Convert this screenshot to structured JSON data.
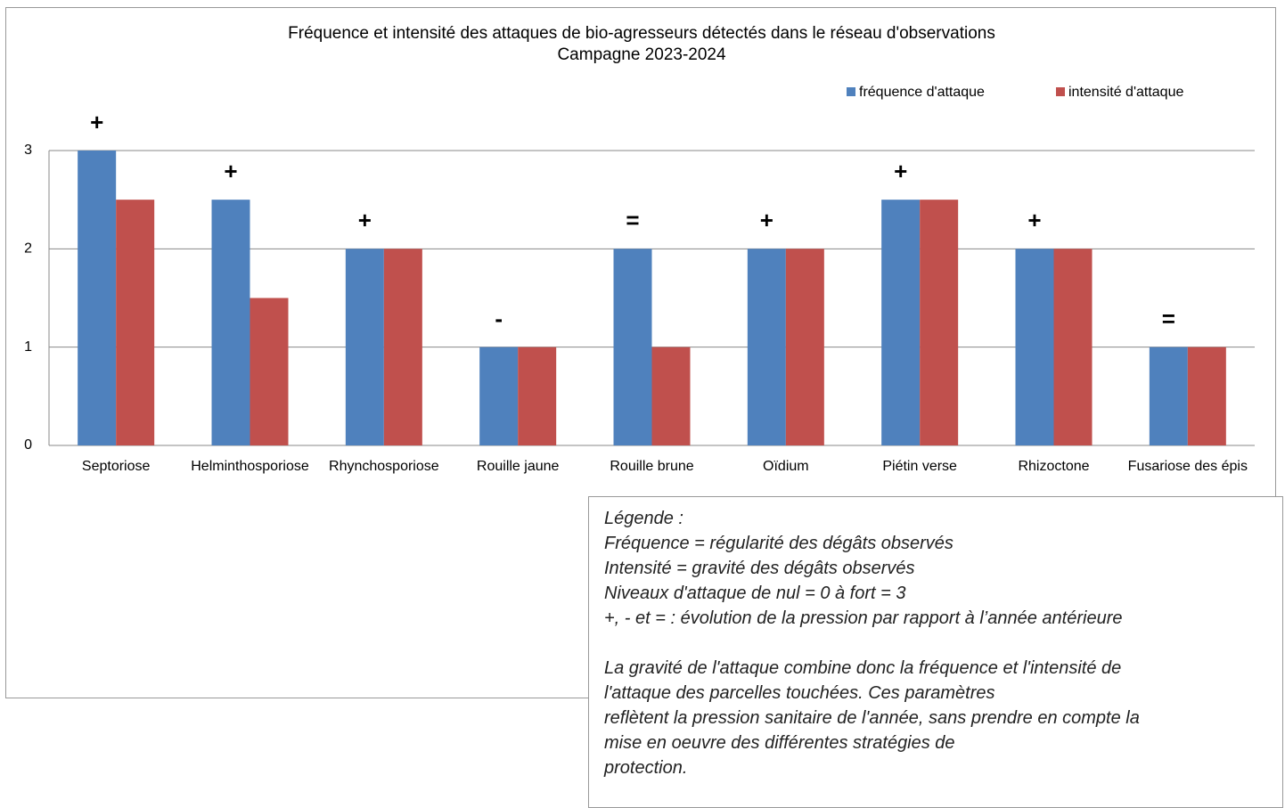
{
  "chart_data": {
    "type": "bar",
    "title": "Fréquence et intensité des attaques de bio-agresseurs détectés dans le réseau d'observations",
    "subtitle": "Campagne 2023-2024",
    "categories": [
      "Septoriose",
      "Helminthosporiose",
      "Rhynchosporiose",
      "Rouille jaune",
      "Rouille brune",
      "Oïdium",
      "Piétin verse",
      "Rhizoctone",
      "Fusariose des épis"
    ],
    "series": [
      {
        "name": "fréquence d'attaque",
        "color": "#4f81bd",
        "values": [
          3,
          2.5,
          2,
          1,
          2,
          2,
          2.5,
          2,
          1
        ]
      },
      {
        "name": "intensité d'attaque",
        "color": "#c0504d",
        "values": [
          2.5,
          1.5,
          2,
          1,
          1,
          2,
          2.5,
          2,
          1
        ]
      }
    ],
    "annotations": [
      {
        "text": "+",
        "color": "#ff0000"
      },
      {
        "text": "+",
        "color": "#ff0000"
      },
      {
        "text": "+",
        "color": "#ff0000"
      },
      {
        "text": "-",
        "color": "#00b050"
      },
      {
        "text": "=",
        "color": "#ffc000"
      },
      {
        "text": "+",
        "color": "#ff0000"
      },
      {
        "text": "+",
        "color": "#ff0000"
      },
      {
        "text": "+",
        "color": "#ff0000"
      },
      {
        "text": "=",
        "color": "#ffc000"
      }
    ],
    "ylim": [
      0,
      3
    ],
    "yticks": [
      0,
      1,
      2,
      3
    ],
    "grid": true,
    "legend_position": "top-right"
  },
  "note": {
    "paragraph1": [
      "Légende :",
      "Fréquence = régularité des dégâts observés",
      "Intensité = gravité des dégâts observés",
      "Niveaux d'attaque de nul = 0 à fort = 3",
      "+, - et = : évolution de la pression par rapport à l’année antérieure"
    ],
    "paragraph2": [
      "La gravité de l'attaque combine donc la fréquence et l'intensité de",
      "l'attaque des parcelles touchées. Ces paramètres",
      "reflètent la pression sanitaire de l'année, sans prendre en compte la",
      "mise en oeuvre des différentes stratégies de",
      "protection."
    ]
  }
}
